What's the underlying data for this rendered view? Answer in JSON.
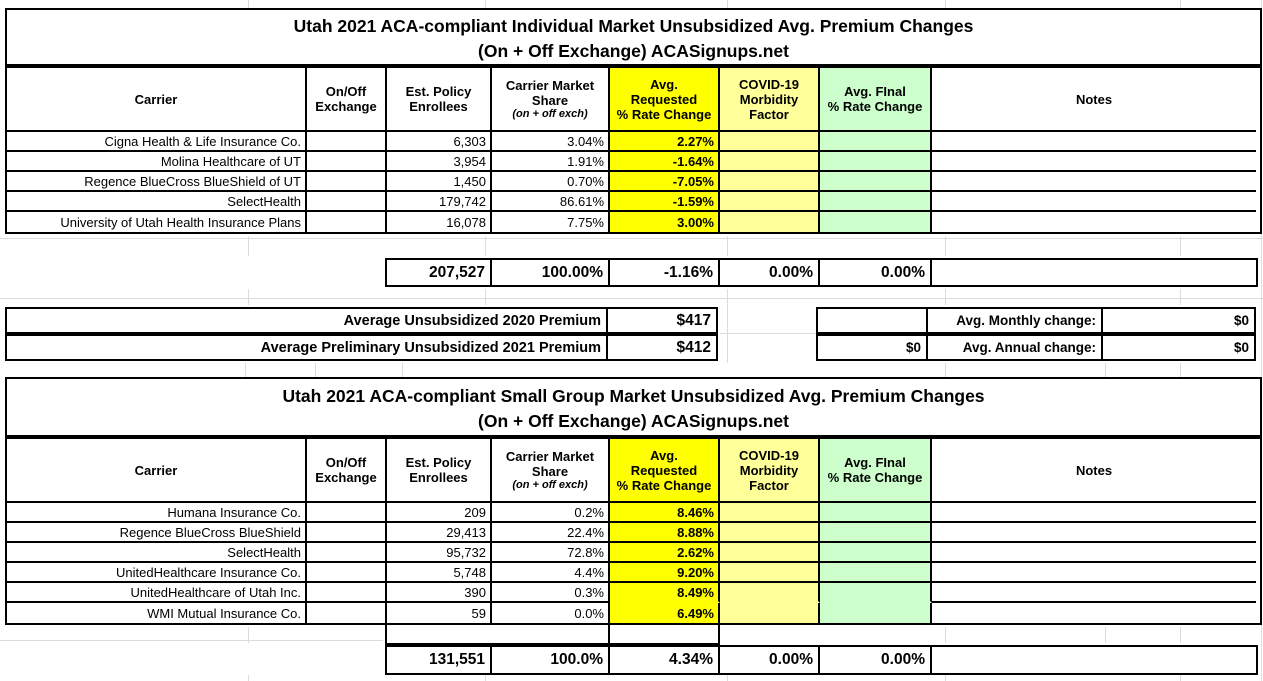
{
  "colors": {
    "yellow": "#FFFF00",
    "light_yellow": "#FFFF99",
    "green": "#CCFFCC"
  },
  "tables": [
    {
      "title_line1": "Utah 2021 ACA-compliant Individual Market Unsubsidized Avg. Premium Changes",
      "title_line2": "(On + Off Exchange) ACASignups.net",
      "headers": {
        "carrier": "Carrier",
        "exchange": "On/Off\nExchange",
        "enrollees": "Est. Policy\nEnrollees",
        "share_main": "Carrier Market\nShare",
        "share_sub": "(on + off exch)",
        "requested": "Avg.\nRequested\n% Rate Change",
        "morbidity": "COVID-19\nMorbidity\nFactor",
        "final": "Avg. FInal\n% Rate Change",
        "notes": "Notes"
      },
      "rows": [
        {
          "carrier": "Cigna Health & Life Insurance Co.",
          "exchange": "",
          "enrollees": "6,303",
          "share": "3.04%",
          "requested": "2.27%",
          "morbidity": "",
          "final": "",
          "notes": ""
        },
        {
          "carrier": "Molina Healthcare of UT",
          "exchange": "",
          "enrollees": "3,954",
          "share": "1.91%",
          "requested": "-1.64%",
          "morbidity": "",
          "final": "",
          "notes": ""
        },
        {
          "carrier": "Regence BlueCross BlueShield of UT",
          "exchange": "",
          "enrollees": "1,450",
          "share": "0.70%",
          "requested": "-7.05%",
          "morbidity": "",
          "final": "",
          "notes": ""
        },
        {
          "carrier": "SelectHealth",
          "exchange": "",
          "enrollees": "179,742",
          "share": "86.61%",
          "requested": "-1.59%",
          "morbidity": "",
          "final": "",
          "notes": ""
        },
        {
          "carrier": "University of Utah Health Insurance Plans",
          "exchange": "",
          "enrollees": "16,078",
          "share": "7.75%",
          "requested": "3.00%",
          "morbidity": "",
          "final": "",
          "notes": ""
        }
      ],
      "total": {
        "enrollees": "207,527",
        "share": "100.00%",
        "requested": "-1.16%",
        "morbidity": "0.00%",
        "final": "0.00%",
        "notes": ""
      }
    },
    {
      "title_line1": "Utah 2021 ACA-compliant Small Group Market Unsubsidized Avg. Premium Changes",
      "title_line2": "(On + Off Exchange) ACASignups.net",
      "headers": {
        "carrier": "Carrier",
        "exchange": "On/Off\nExchange",
        "enrollees": "Est. Policy\nEnrollees",
        "share_main": "Carrier Market\nShare",
        "share_sub": "(on + off exch)",
        "requested": "Avg.\nRequested\n% Rate Change",
        "morbidity": "COVID-19\nMorbidity\nFactor",
        "final": "Avg. FInal\n% Rate Change",
        "notes": "Notes"
      },
      "rows": [
        {
          "carrier": "Humana Insurance Co.",
          "exchange": "",
          "enrollees": "209",
          "share": "0.2%",
          "requested": "8.46%",
          "morbidity": "",
          "final": "",
          "notes": ""
        },
        {
          "carrier": "Regence BlueCross BlueShield",
          "exchange": "",
          "enrollees": "29,413",
          "share": "22.4%",
          "requested": "8.88%",
          "morbidity": "",
          "final": "",
          "notes": ""
        },
        {
          "carrier": "SelectHealth",
          "exchange": "",
          "enrollees": "95,732",
          "share": "72.8%",
          "requested": "2.62%",
          "morbidity": "",
          "final": "",
          "notes": ""
        },
        {
          "carrier": "UnitedHealthcare Insurance Co.",
          "exchange": "",
          "enrollees": "5,748",
          "share": "4.4%",
          "requested": "9.20%",
          "morbidity": "",
          "final": "",
          "notes": ""
        },
        {
          "carrier": "UnitedHealthcare of Utah Inc.",
          "exchange": "",
          "enrollees": "390",
          "share": "0.3%",
          "requested": "8.49%",
          "morbidity": "",
          "final": "",
          "notes": ""
        },
        {
          "carrier": "WMI Mutual Insurance Co.",
          "exchange": "",
          "enrollees": "59",
          "share": "0.0%",
          "requested": "6.49%",
          "morbidity": "",
          "final": "",
          "notes": ""
        }
      ],
      "total": {
        "enrollees": "131,551",
        "share": "100.0%",
        "requested": "4.34%",
        "morbidity": "0.00%",
        "final": "0.00%",
        "notes": ""
      }
    }
  ],
  "premium_summary": {
    "rows": [
      {
        "label": "Average Unsubsidized 2020 Premium",
        "value": "$417",
        "final": "",
        "change_label": "Avg. Monthly change:",
        "change_value": "$0"
      },
      {
        "label": "Average Preliminary Unsubsidized 2021 Premium",
        "value": "$412",
        "final": "$0",
        "change_label": "Avg. Annual change:",
        "change_value": "$0"
      }
    ]
  }
}
